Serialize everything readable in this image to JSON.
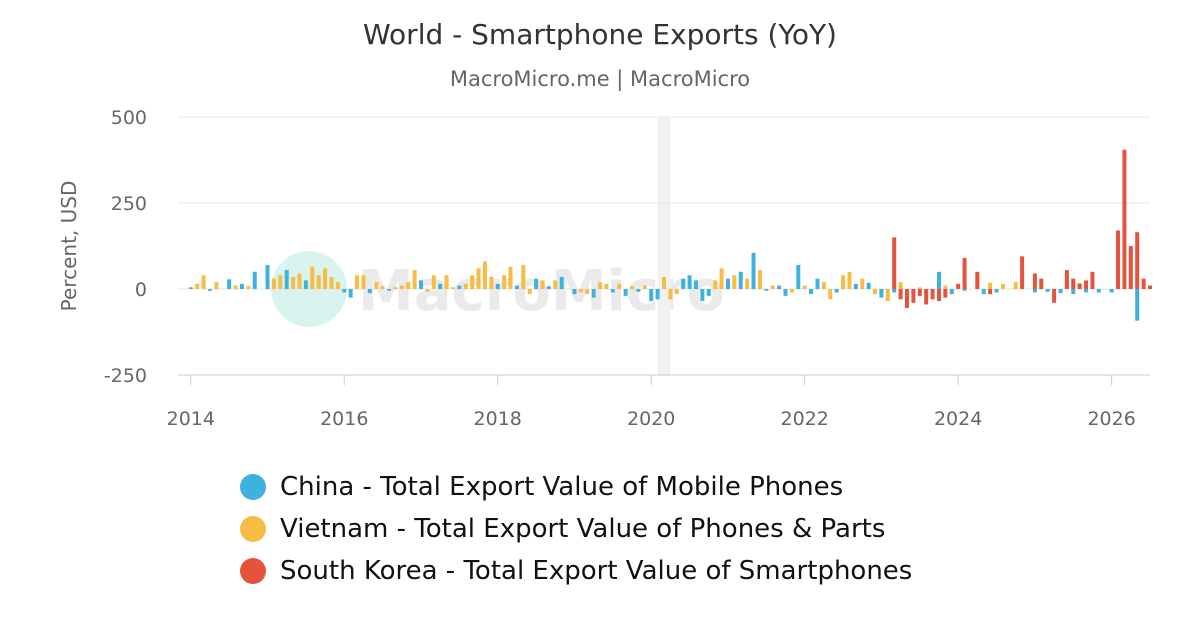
{
  "chart_data": {
    "type": "bar",
    "title": "World - Smartphone Exports (YoY)",
    "subtitle": "MacroMicro.me | MacroMicro",
    "ylabel": "Percent, USD",
    "xlabel": "",
    "ylim": [
      -250,
      500
    ],
    "yticks": [
      500,
      250,
      0,
      -250
    ],
    "xticks": [
      "2014",
      "2016",
      "2018",
      "2020",
      "2022",
      "2024",
      "2026"
    ],
    "xrange": [
      "2013-11",
      "2026-07"
    ],
    "highlight_period": [
      "2020-02",
      "2020-04"
    ],
    "grid": true,
    "legend_position": "bottom",
    "watermark": "MacroMicro",
    "series": [
      {
        "name": "China - Total Export Value of Mobile Phones",
        "color": "#3fb1dd",
        "points": [
          [
            "2014-01",
            5
          ],
          [
            "2014-04",
            -5
          ],
          [
            "2014-07",
            28
          ],
          [
            "2014-09",
            15
          ],
          [
            "2014-11",
            50
          ],
          [
            "2015-01",
            70
          ],
          [
            "2015-04",
            55
          ],
          [
            "2015-07",
            25
          ],
          [
            "2016-01",
            -10
          ],
          [
            "2016-02",
            -25
          ],
          [
            "2016-05",
            -12
          ],
          [
            "2016-08",
            -5
          ],
          [
            "2017-01",
            25
          ],
          [
            "2017-04",
            15
          ],
          [
            "2017-07",
            10
          ],
          [
            "2018-01",
            15
          ],
          [
            "2018-04",
            10
          ],
          [
            "2018-07",
            30
          ],
          [
            "2018-09",
            8
          ],
          [
            "2018-11",
            35
          ],
          [
            "2019-01",
            -15
          ],
          [
            "2019-04",
            -25
          ],
          [
            "2019-07",
            -10
          ],
          [
            "2019-09",
            -20
          ],
          [
            "2019-11",
            -8
          ],
          [
            "2020-01",
            -35
          ],
          [
            "2020-02",
            -30
          ],
          [
            "2020-06",
            30
          ],
          [
            "2020-07",
            40
          ],
          [
            "2020-08",
            25
          ],
          [
            "2020-09",
            -35
          ],
          [
            "2020-10",
            -20
          ],
          [
            "2021-01",
            30
          ],
          [
            "2021-03",
            50
          ],
          [
            "2021-05",
            105
          ],
          [
            "2021-07",
            -5
          ],
          [
            "2021-09",
            10
          ],
          [
            "2021-10",
            -20
          ],
          [
            "2021-12",
            70
          ],
          [
            "2022-02",
            -15
          ],
          [
            "2022-03",
            30
          ],
          [
            "2022-06",
            -10
          ],
          [
            "2022-09",
            15
          ],
          [
            "2022-11",
            18
          ],
          [
            "2023-01",
            -25
          ],
          [
            "2023-03",
            -10
          ],
          [
            "2023-06",
            -8
          ],
          [
            "2023-08",
            -15
          ],
          [
            "2023-09",
            -5
          ],
          [
            "2023-10",
            50
          ],
          [
            "2023-12",
            -15
          ],
          [
            "2024-02",
            -5
          ],
          [
            "2024-05",
            -15
          ],
          [
            "2024-07",
            -10
          ],
          [
            "2025-01",
            -10
          ],
          [
            "2025-03",
            -8
          ],
          [
            "2025-05",
            -12
          ],
          [
            "2025-07",
            -15
          ],
          [
            "2025-09",
            -10
          ],
          [
            "2025-11",
            -10
          ],
          [
            "2026-01",
            -10
          ],
          [
            "2026-05",
            -92
          ]
        ]
      },
      {
        "name": "Vietnam - Total Export Value of Phones & Parts",
        "color": "#f6bc44",
        "points": [
          [
            "2014-02",
            15
          ],
          [
            "2014-03",
            40
          ],
          [
            "2014-05",
            20
          ],
          [
            "2014-08",
            10
          ],
          [
            "2014-10",
            8
          ],
          [
            "2015-02",
            30
          ],
          [
            "2015-03",
            40
          ],
          [
            "2015-05",
            35
          ],
          [
            "2015-06",
            45
          ],
          [
            "2015-08",
            65
          ],
          [
            "2015-09",
            40
          ],
          [
            "2015-10",
            60
          ],
          [
            "2015-11",
            35
          ],
          [
            "2015-12",
            20
          ],
          [
            "2016-03",
            40
          ],
          [
            "2016-04",
            40
          ],
          [
            "2016-06",
            20
          ],
          [
            "2016-07",
            8
          ],
          [
            "2016-09",
            5
          ],
          [
            "2016-10",
            10
          ],
          [
            "2016-11",
            20
          ],
          [
            "2016-12",
            55
          ],
          [
            "2017-02",
            -8
          ],
          [
            "2017-03",
            40
          ],
          [
            "2017-05",
            40
          ],
          [
            "2017-06",
            5
          ],
          [
            "2017-08",
            15
          ],
          [
            "2017-09",
            40
          ],
          [
            "2017-10",
            60
          ],
          [
            "2017-11",
            80
          ],
          [
            "2017-12",
            35
          ],
          [
            "2018-02",
            40
          ],
          [
            "2018-03",
            65
          ],
          [
            "2018-05",
            70
          ],
          [
            "2018-06",
            -15
          ],
          [
            "2018-08",
            25
          ],
          [
            "2018-10",
            25
          ],
          [
            "2019-02",
            -10
          ],
          [
            "2019-03",
            -15
          ],
          [
            "2019-05",
            20
          ],
          [
            "2019-06",
            15
          ],
          [
            "2019-08",
            15
          ],
          [
            "2019-10",
            8
          ],
          [
            "2019-12",
            10
          ],
          [
            "2020-03",
            35
          ],
          [
            "2020-04",
            -30
          ],
          [
            "2020-05",
            -15
          ],
          [
            "2020-11",
            25
          ],
          [
            "2020-12",
            60
          ],
          [
            "2021-02",
            40
          ],
          [
            "2021-04",
            30
          ],
          [
            "2021-06",
            55
          ],
          [
            "2021-08",
            10
          ],
          [
            "2021-11",
            -10
          ],
          [
            "2022-01",
            10
          ],
          [
            "2022-04",
            20
          ],
          [
            "2022-05",
            -30
          ],
          [
            "2022-07",
            40
          ],
          [
            "2022-08",
            50
          ],
          [
            "2022-10",
            30
          ],
          [
            "2022-12",
            -15
          ],
          [
            "2023-02",
            -35
          ],
          [
            "2023-04",
            20
          ],
          [
            "2023-07",
            5
          ],
          [
            "2023-11",
            10
          ],
          [
            "2024-01",
            8
          ],
          [
            "2024-04",
            40
          ],
          [
            "2024-06",
            18
          ],
          [
            "2024-08",
            15
          ],
          [
            "2024-10",
            20
          ],
          [
            "2025-02",
            10
          ],
          [
            "2025-06",
            20
          ],
          [
            "2025-08",
            18
          ]
        ]
      },
      {
        "name": "South Korea - Total Export Value of Smartphones",
        "color": "#e5533d",
        "points": [
          [
            "2023-03",
            150
          ],
          [
            "2023-04",
            -30
          ],
          [
            "2023-05",
            -55
          ],
          [
            "2023-06",
            -40
          ],
          [
            "2023-07",
            -20
          ],
          [
            "2023-08",
            -45
          ],
          [
            "2023-09",
            -30
          ],
          [
            "2023-10",
            -35
          ],
          [
            "2023-11",
            -25
          ],
          [
            "2024-01",
            15
          ],
          [
            "2024-02",
            90
          ],
          [
            "2024-04",
            50
          ],
          [
            "2024-06",
            -15
          ],
          [
            "2024-11",
            95
          ],
          [
            "2025-01",
            45
          ],
          [
            "2025-02",
            30
          ],
          [
            "2025-04",
            -40
          ],
          [
            "2025-06",
            55
          ],
          [
            "2025-07",
            30
          ],
          [
            "2025-08",
            15
          ],
          [
            "2025-09",
            25
          ],
          [
            "2025-10",
            50
          ],
          [
            "2026-02",
            170
          ],
          [
            "2026-03",
            405
          ],
          [
            "2026-04",
            125
          ],
          [
            "2026-05",
            165
          ],
          [
            "2026-06",
            30
          ],
          [
            "2026-07",
            10
          ]
        ]
      }
    ]
  }
}
